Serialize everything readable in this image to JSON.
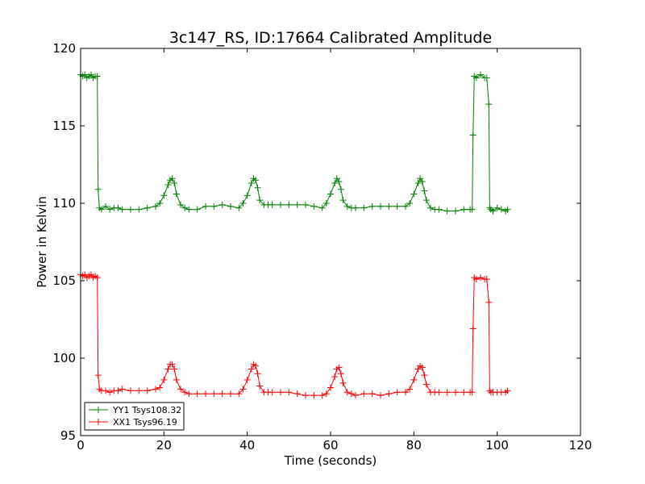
{
  "chart_data": {
    "type": "line",
    "title": "3c147_RS, ID:17664 Calibrated Amplitude",
    "xlabel": "Time (seconds)",
    "ylabel": "Power in Kelvin",
    "xlim": [
      0,
      120
    ],
    "ylim": [
      95,
      120
    ],
    "xticks": [
      0,
      20,
      40,
      60,
      80,
      100,
      120
    ],
    "yticks": [
      95,
      100,
      105,
      110,
      115,
      120
    ],
    "grid": false,
    "legend_position": "lower-left",
    "marker": "plus",
    "series": [
      {
        "name": "YY1 Tsys108.32",
        "color": "#008000",
        "x": [
          0,
          0.5,
          1,
          1.5,
          2,
          2.5,
          3,
          3.5,
          4,
          4.2,
          4.5,
          5,
          6,
          7,
          8,
          9,
          10,
          12,
          14,
          16,
          18,
          19,
          20,
          21,
          21.5,
          22,
          22.5,
          23,
          24,
          25,
          26,
          28,
          30,
          32,
          34,
          36,
          38,
          39,
          40,
          41,
          41.5,
          42,
          42.5,
          43,
          44,
          45,
          46,
          48,
          50,
          52,
          54,
          56,
          58,
          59,
          60,
          61,
          61.5,
          62,
          62.5,
          63,
          64,
          65,
          66,
          68,
          70,
          72,
          74,
          76,
          78,
          79,
          80,
          81,
          81.5,
          82,
          82.5,
          83,
          84,
          85,
          86,
          88,
          90,
          92,
          93.5,
          94,
          94.2,
          94.5,
          95,
          96,
          97,
          97.5,
          98,
          98.2,
          98.5,
          99,
          100,
          101,
          102,
          102.5
        ],
        "y": [
          118.3,
          118.2,
          118.3,
          118.1,
          118.2,
          118.3,
          118.1,
          118.2,
          118.2,
          110.9,
          109.7,
          109.6,
          109.8,
          109.6,
          109.7,
          109.7,
          109.6,
          109.6,
          109.6,
          109.7,
          109.8,
          110.0,
          110.5,
          111.2,
          111.5,
          111.6,
          111.3,
          110.6,
          109.9,
          109.7,
          109.6,
          109.6,
          109.8,
          109.8,
          109.9,
          109.8,
          109.7,
          110.0,
          110.5,
          111.3,
          111.6,
          111.5,
          111.0,
          110.2,
          109.9,
          109.9,
          109.9,
          109.9,
          109.9,
          109.9,
          109.9,
          109.8,
          109.7,
          110.0,
          110.6,
          111.3,
          111.6,
          111.4,
          110.9,
          110.2,
          109.8,
          109.7,
          109.7,
          109.7,
          109.8,
          109.8,
          109.8,
          109.8,
          109.8,
          110.0,
          110.6,
          111.3,
          111.6,
          111.4,
          110.8,
          110.2,
          109.7,
          109.6,
          109.6,
          109.5,
          109.5,
          109.6,
          109.6,
          109.6,
          114.4,
          118.2,
          118.1,
          118.3,
          118.1,
          118.1,
          116.4,
          109.7,
          109.6,
          109.5,
          109.7,
          109.6,
          109.5,
          109.6
        ]
      },
      {
        "name": "XX1 Tsys96.19",
        "color": "#ff0000",
        "x": [
          0,
          0.5,
          1,
          1.5,
          2,
          2.5,
          3,
          3.5,
          4,
          4.2,
          4.5,
          5,
          6,
          7,
          8,
          9,
          10,
          12,
          14,
          16,
          18,
          19,
          20,
          21,
          21.5,
          22,
          22.5,
          23,
          24,
          25,
          26,
          28,
          30,
          32,
          34,
          36,
          38,
          39,
          40,
          41,
          41.5,
          42,
          42.5,
          43,
          44,
          45,
          46,
          48,
          50,
          52,
          54,
          56,
          58,
          59,
          60,
          61,
          61.5,
          62,
          62.5,
          63,
          64,
          65,
          66,
          68,
          70,
          72,
          74,
          76,
          78,
          79,
          80,
          81,
          81.5,
          82,
          82.5,
          83,
          84,
          85,
          86,
          88,
          90,
          92,
          93.5,
          94,
          94.2,
          94.5,
          95,
          96,
          97,
          97.5,
          98,
          98.2,
          98.5,
          99,
          100,
          101,
          102,
          102.5
        ],
        "y": [
          105.4,
          105.3,
          105.4,
          105.2,
          105.3,
          105.4,
          105.2,
          105.3,
          105.2,
          98.9,
          98.0,
          97.9,
          97.9,
          97.8,
          97.9,
          97.9,
          98.0,
          97.9,
          97.9,
          97.9,
          98.0,
          98.1,
          98.6,
          99.3,
          99.6,
          99.6,
          99.3,
          98.6,
          98.0,
          97.8,
          97.7,
          97.7,
          97.7,
          97.7,
          97.7,
          97.7,
          97.7,
          98.0,
          98.6,
          99.3,
          99.6,
          99.5,
          99.0,
          98.2,
          97.8,
          97.8,
          97.8,
          97.8,
          97.8,
          97.7,
          97.6,
          97.6,
          97.6,
          97.7,
          98.1,
          98.8,
          99.3,
          99.4,
          99.0,
          98.4,
          97.8,
          97.7,
          97.6,
          97.7,
          97.7,
          97.6,
          97.7,
          97.8,
          97.8,
          98.0,
          98.6,
          99.3,
          99.5,
          99.4,
          98.9,
          98.3,
          97.8,
          97.8,
          97.8,
          97.8,
          97.8,
          97.8,
          97.8,
          97.8,
          101.9,
          105.2,
          105.1,
          105.2,
          105.1,
          105.1,
          103.6,
          97.9,
          97.8,
          97.8,
          97.8,
          97.8,
          97.8,
          97.9
        ]
      }
    ]
  }
}
